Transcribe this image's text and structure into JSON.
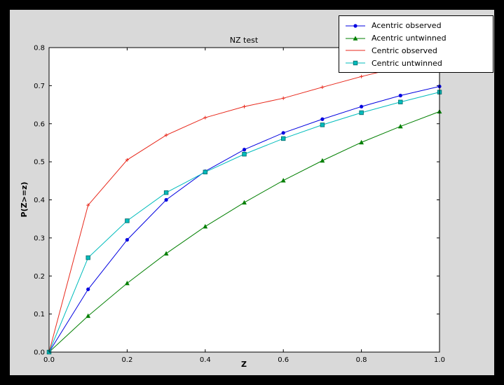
{
  "colors": {
    "outer_background": "#000000",
    "figure_background": "#d9d9d9",
    "axes_background": "#ffffff",
    "axes_frame": "#000000"
  },
  "chart_data": {
    "type": "line",
    "title": "NZ test",
    "xlabel": "Z",
    "ylabel": "P(Z>=z)",
    "xlim": [
      0.0,
      1.0
    ],
    "ylim": [
      0.0,
      0.8
    ],
    "xticks": [
      0.0,
      0.2,
      0.4,
      0.6,
      0.8,
      1.0
    ],
    "yticks": [
      0.0,
      0.1,
      0.2,
      0.3,
      0.4,
      0.5,
      0.6,
      0.7,
      0.8
    ],
    "grid": false,
    "legend_position": "upper right",
    "x": [
      0.0,
      0.1,
      0.2,
      0.3,
      0.4,
      0.5,
      0.6,
      0.7,
      0.8,
      0.9,
      1.0
    ],
    "series": [
      {
        "name": "Acentric observed",
        "color": "#0000e0",
        "marker": "circle",
        "values": [
          0.0,
          0.165,
          0.295,
          0.4,
          0.475,
          0.532,
          0.576,
          0.612,
          0.645,
          0.674,
          0.698
        ]
      },
      {
        "name": "Acentric untwinned",
        "color": "#007f00",
        "marker": "triangle",
        "values": [
          0.0,
          0.095,
          0.181,
          0.259,
          0.33,
          0.393,
          0.451,
          0.503,
          0.551,
          0.593,
          0.632
        ]
      },
      {
        "name": "Centric observed",
        "color": "#e8291c",
        "marker": "plus",
        "values": [
          0.0,
          0.386,
          0.505,
          0.57,
          0.616,
          0.645,
          0.667,
          0.696,
          0.724,
          0.749,
          0.762
        ]
      },
      {
        "name": "Centric untwinned",
        "color": "#00bcbc",
        "marker": "square",
        "values": [
          0.0,
          0.248,
          0.345,
          0.419,
          0.473,
          0.52,
          0.561,
          0.597,
          0.629,
          0.657,
          0.683
        ]
      }
    ]
  }
}
